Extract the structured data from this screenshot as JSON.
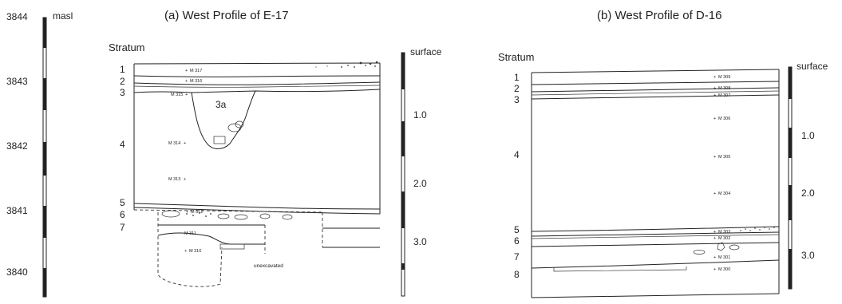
{
  "elevation_scale": {
    "unit_label": "masl",
    "ticks": [
      "3844",
      "3843",
      "3842",
      "3841",
      "3840"
    ]
  },
  "panel_a": {
    "title": "(a) West Profile of E-17",
    "stratum_heading": "Stratum",
    "strata": [
      "1",
      "2",
      "3",
      "3a",
      "4",
      "5",
      "6",
      "7"
    ],
    "samples": [
      "M 317",
      "M 316",
      "M 315",
      "M 314",
      "M 313",
      "M 312",
      "M 311",
      "M 310"
    ],
    "note": "unexcavated",
    "depth_scale": {
      "top_label": "surface",
      "ticks": [
        "1.0",
        "2.0",
        "3.0"
      ]
    }
  },
  "panel_b": {
    "title": "(b) West Profile of D-16",
    "stratum_heading": "Stratum",
    "strata": [
      "1",
      "2",
      "3",
      "4",
      "5",
      "6",
      "7",
      "8"
    ],
    "samples": [
      "M 309",
      "M 308",
      "M 307",
      "M 306",
      "M 305",
      "M 304",
      "M 303",
      "M 302",
      "M 301",
      "M 300"
    ],
    "depth_scale": {
      "top_label": "surface",
      "ticks": [
        "1.0",
        "2.0",
        "3.0"
      ]
    }
  }
}
